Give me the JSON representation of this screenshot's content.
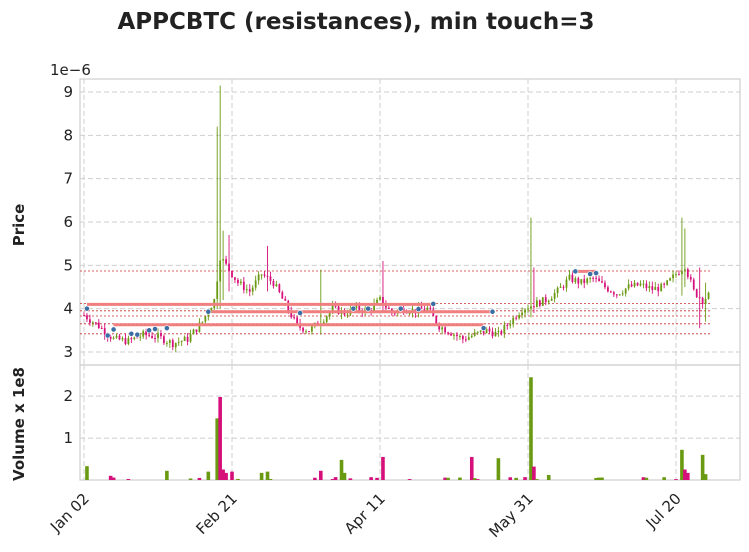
{
  "chart_data": {
    "type": "candlestick",
    "title": "APPCBTC (resistances), min touch=3",
    "price_panel": {
      "ylabel": "Price",
      "scale_label": "1e−6",
      "y_ticks": [
        3,
        4,
        5,
        6,
        7,
        8,
        9
      ],
      "ylim": [
        2.7,
        9.3
      ]
    },
    "volume_panel": {
      "ylabel": "Volume x 1e8",
      "y_ticks": [
        1,
        2
      ],
      "ylim": [
        0,
        2.6
      ]
    },
    "x_ticks": [
      "Jan 02",
      "Feb 21",
      "Apr 11",
      "May 31",
      "Jul 20"
    ],
    "x_tick_index": [
      0,
      50,
      100,
      150,
      200
    ],
    "n_bars": 212,
    "colors": {
      "up": "#6a9a12",
      "down": "#d6107a",
      "resistance": "#f08080",
      "marker": "#3a6ea5",
      "reference_line": "#c83030"
    },
    "reference_levels": [
      4.87,
      4.12,
      3.95,
      3.83,
      3.65,
      3.42
    ],
    "resistances": [
      {
        "start": 1,
        "end": 118,
        "level": 4.1
      },
      {
        "start": 43,
        "end": 138,
        "level": 3.93
      },
      {
        "start": 10,
        "end": 135,
        "level": 3.63
      },
      {
        "start": 166,
        "end": 173,
        "level": 4.86
      }
    ],
    "touch_points": [
      {
        "i": 1,
        "p": 4.0
      },
      {
        "i": 8,
        "p": 3.38
      },
      {
        "i": 10,
        "p": 3.52
      },
      {
        "i": 16,
        "p": 3.42
      },
      {
        "i": 18,
        "p": 3.4
      },
      {
        "i": 22,
        "p": 3.5
      },
      {
        "i": 24,
        "p": 3.53
      },
      {
        "i": 28,
        "p": 3.55
      },
      {
        "i": 42,
        "p": 3.93
      },
      {
        "i": 73,
        "p": 3.9
      },
      {
        "i": 91,
        "p": 4.0
      },
      {
        "i": 96,
        "p": 4.0
      },
      {
        "i": 107,
        "p": 4.0
      },
      {
        "i": 113,
        "p": 3.99
      },
      {
        "i": 118,
        "p": 4.11
      },
      {
        "i": 135,
        "p": 3.55
      },
      {
        "i": 138,
        "p": 3.93
      },
      {
        "i": 166,
        "p": 4.86
      },
      {
        "i": 171,
        "p": 4.8
      },
      {
        "i": 173,
        "p": 4.82
      }
    ],
    "price_anchors": [
      [
        0,
        3.85
      ],
      [
        5,
        3.6
      ],
      [
        10,
        3.3
      ],
      [
        15,
        3.25
      ],
      [
        20,
        3.4
      ],
      [
        25,
        3.35
      ],
      [
        30,
        3.2
      ],
      [
        35,
        3.3
      ],
      [
        40,
        3.7
      ],
      [
        44,
        4.2
      ],
      [
        46,
        5.2
      ],
      [
        48,
        5.0
      ],
      [
        52,
        4.6
      ],
      [
        56,
        4.4
      ],
      [
        60,
        4.8
      ],
      [
        64,
        4.6
      ],
      [
        68,
        4.1
      ],
      [
        72,
        3.6
      ],
      [
        76,
        3.5
      ],
      [
        80,
        3.7
      ],
      [
        84,
        4.0
      ],
      [
        88,
        3.9
      ],
      [
        92,
        4.0
      ],
      [
        96,
        3.95
      ],
      [
        100,
        4.2
      ],
      [
        104,
        3.9
      ],
      [
        108,
        4.0
      ],
      [
        112,
        3.95
      ],
      [
        116,
        4.0
      ],
      [
        120,
        3.6
      ],
      [
        124,
        3.45
      ],
      [
        128,
        3.3
      ],
      [
        132,
        3.4
      ],
      [
        136,
        3.5
      ],
      [
        140,
        3.4
      ],
      [
        144,
        3.7
      ],
      [
        148,
        4.0
      ],
      [
        152,
        4.1
      ],
      [
        156,
        4.2
      ],
      [
        160,
        4.4
      ],
      [
        164,
        4.7
      ],
      [
        168,
        4.6
      ],
      [
        172,
        4.7
      ],
      [
        176,
        4.5
      ],
      [
        180,
        4.35
      ],
      [
        184,
        4.5
      ],
      [
        188,
        4.55
      ],
      [
        192,
        4.45
      ],
      [
        196,
        4.5
      ],
      [
        200,
        4.8
      ],
      [
        203,
        5.0
      ],
      [
        206,
        4.4
      ],
      [
        209,
        4.2
      ],
      [
        211,
        4.3
      ]
    ],
    "spikes": [
      {
        "i": 46,
        "high": 9.15,
        "low": 4.0
      },
      {
        "i": 45,
        "high": 8.2,
        "low": 4.0
      },
      {
        "i": 47,
        "high": 5.8,
        "low": 4.2
      },
      {
        "i": 49,
        "high": 5.7,
        "low": 4.4
      },
      {
        "i": 62,
        "high": 5.45,
        "low": 4.4
      },
      {
        "i": 80,
        "high": 4.9,
        "low": 3.4
      },
      {
        "i": 101,
        "high": 5.1,
        "low": 3.9
      },
      {
        "i": 151,
        "high": 6.1,
        "low": 3.8
      },
      {
        "i": 152,
        "high": 4.95,
        "low": 3.9
      },
      {
        "i": 202,
        "high": 6.1,
        "low": 4.3
      },
      {
        "i": 203,
        "high": 5.85,
        "low": 4.5
      },
      {
        "i": 208,
        "high": 4.95,
        "low": 3.55
      },
      {
        "i": 210,
        "high": 4.6,
        "low": 3.7
      }
    ],
    "volume_spikes": [
      {
        "i": 1,
        "v": 0.33,
        "up": true
      },
      {
        "i": 9,
        "v": 0.1,
        "up": false
      },
      {
        "i": 28,
        "v": 0.22,
        "up": true
      },
      {
        "i": 42,
        "v": 0.2,
        "up": true
      },
      {
        "i": 45,
        "v": 1.47,
        "up": true
      },
      {
        "i": 46,
        "v": 1.98,
        "up": false
      },
      {
        "i": 47,
        "v": 0.25,
        "up": false
      },
      {
        "i": 48,
        "v": 0.17,
        "up": false
      },
      {
        "i": 50,
        "v": 0.2,
        "up": false
      },
      {
        "i": 60,
        "v": 0.17,
        "up": true
      },
      {
        "i": 62,
        "v": 0.2,
        "up": true
      },
      {
        "i": 80,
        "v": 0.22,
        "up": false
      },
      {
        "i": 87,
        "v": 0.48,
        "up": true
      },
      {
        "i": 88,
        "v": 0.17,
        "up": true
      },
      {
        "i": 101,
        "v": 0.55,
        "up": false
      },
      {
        "i": 131,
        "v": 0.55,
        "up": false
      },
      {
        "i": 140,
        "v": 0.52,
        "up": true
      },
      {
        "i": 151,
        "v": 2.45,
        "up": true
      },
      {
        "i": 152,
        "v": 0.32,
        "up": false
      },
      {
        "i": 157,
        "v": 0.12,
        "up": true
      },
      {
        "i": 202,
        "v": 0.72,
        "up": true
      },
      {
        "i": 203,
        "v": 0.25,
        "up": false
      },
      {
        "i": 204,
        "v": 0.17,
        "up": false
      },
      {
        "i": 209,
        "v": 0.6,
        "up": true
      },
      {
        "i": 210,
        "v": 0.14,
        "up": true
      }
    ]
  }
}
